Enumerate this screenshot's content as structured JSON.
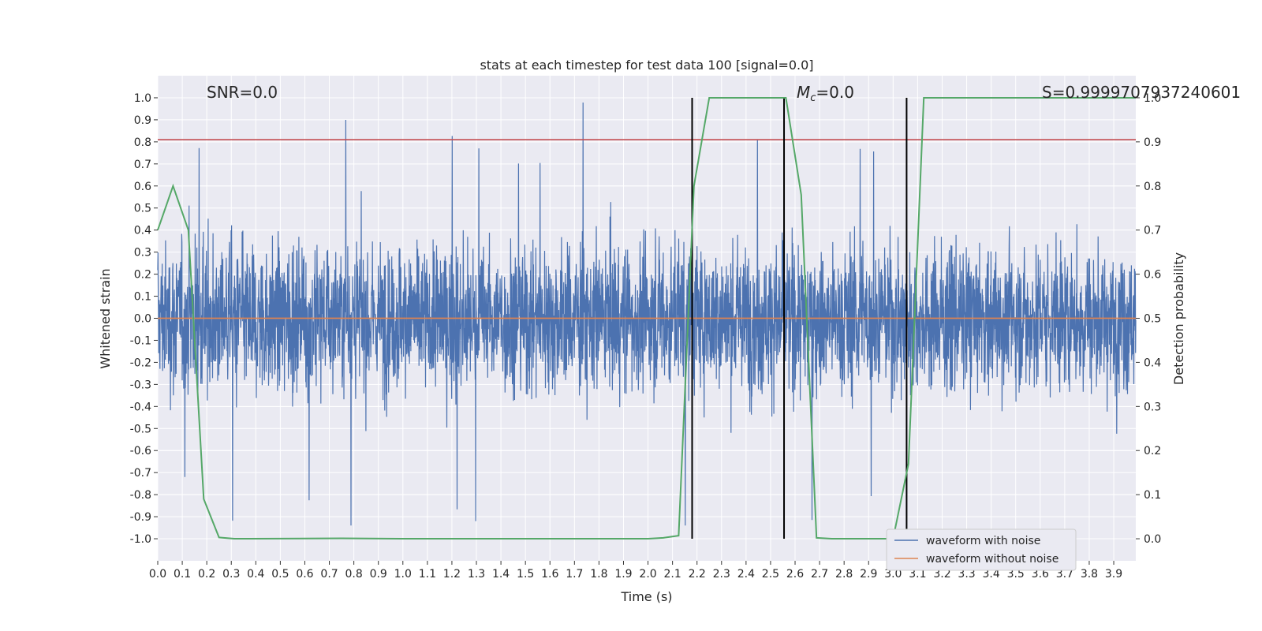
{
  "chart_data": {
    "type": "line",
    "title": "stats at each timestep for test data 100 [signal=0.0]",
    "xlabel": "Time (s)",
    "ylabel": "Whitened strain",
    "ylabel_right": "Detection probability",
    "xlim": [
      0.0,
      3.99
    ],
    "ylim": [
      -1.1,
      1.1
    ],
    "ylim_right": [
      -0.05,
      1.05
    ],
    "x_ticks": [
      "0.0",
      "0.1",
      "0.2",
      "0.3",
      "0.4",
      "0.5",
      "0.6",
      "0.7",
      "0.8",
      "0.9",
      "1.0",
      "1.1",
      "1.2",
      "1.3",
      "1.4",
      "1.5",
      "1.6",
      "1.7",
      "1.8",
      "1.9",
      "2.0",
      "2.1",
      "2.2",
      "2.3",
      "2.4",
      "2.5",
      "2.6",
      "2.7",
      "2.8",
      "2.9",
      "3.0",
      "3.1",
      "3.2",
      "3.3",
      "3.4",
      "3.5",
      "3.6",
      "3.7",
      "3.8",
      "3.9"
    ],
    "y_ticks": [
      "1.0",
      "0.9",
      "0.8",
      "0.7",
      "0.6",
      "0.5",
      "0.4",
      "0.3",
      "0.2",
      "0.1",
      "0.0",
      "-0.1",
      "-0.2",
      "-0.3",
      "-0.4",
      "-0.5",
      "-0.6",
      "-0.7",
      "-0.8",
      "-0.9",
      "-1.0"
    ],
    "y_ticks_right": [
      "1.0",
      "0.9",
      "0.8",
      "0.7",
      "0.6",
      "0.5",
      "0.4",
      "0.3",
      "0.2",
      "0.1",
      "0.0"
    ],
    "annotations": {
      "snr": "SNR=0.0",
      "mc_symbol": "M",
      "mc_sub": "c",
      "mc_value": "=0.0",
      "s": "S=0.9999707937240601"
    },
    "threshold_line": {
      "value": 0.81,
      "color": "#c44e52"
    },
    "vertical_lines": [
      2.18,
      2.555,
      3.055
    ],
    "series": [
      {
        "name": "waveform with noise",
        "color": "#4c72b0",
        "kind": "noise",
        "typical_amplitude": 0.3,
        "peak": 1.0
      },
      {
        "name": "waveform without noise",
        "color": "#dd8452",
        "kind": "flat",
        "value": 0.0
      },
      {
        "name": "",
        "color": "#55a868",
        "axis": "right",
        "x": [
          0.0,
          0.0625,
          0.125,
          0.1875,
          0.25,
          0.3125,
          0.375,
          0.75,
          1.0,
          1.5,
          2.0,
          2.0625,
          2.125,
          2.1875,
          2.25,
          2.3125,
          2.5625,
          2.625,
          2.6875,
          2.75,
          3.0,
          3.0625,
          3.125,
          3.1875,
          3.25,
          3.5,
          3.99
        ],
        "values": [
          0.7,
          0.8,
          0.7,
          0.09,
          0.003,
          0.0,
          0.0,
          0.001,
          0.0,
          0.0,
          0.0,
          0.002,
          0.007,
          0.8,
          1.0,
          1.0,
          1.0,
          0.78,
          0.002,
          0.0,
          0.0,
          0.17,
          1.0,
          1.0,
          1.0,
          1.0,
          1.0
        ]
      }
    ],
    "legend": {
      "position": "lower-right"
    },
    "grid": true,
    "colors": {
      "background": "#eaeaf2",
      "grid": "#ffffff",
      "vlines": "#000000"
    }
  }
}
